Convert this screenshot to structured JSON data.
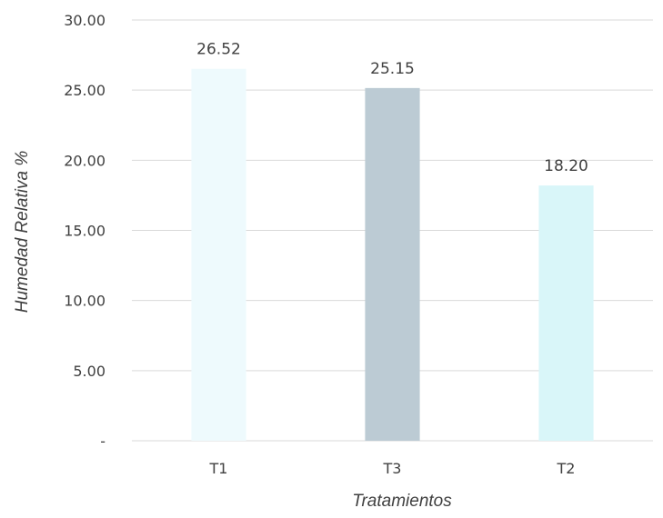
{
  "chart_data": {
    "type": "bar",
    "title": "",
    "xlabel": "Tratamientos",
    "ylabel": "Humedad Relativa %",
    "categories": [
      "T1",
      "T3",
      "T2"
    ],
    "values": [
      26.52,
      25.15,
      18.2
    ],
    "data_labels": [
      "26.52",
      "25.15",
      "18.20"
    ],
    "ylim": [
      0,
      30
    ],
    "yticks": [
      0,
      5,
      10,
      15,
      20,
      25,
      30
    ],
    "ytick_labels": [
      "-",
      "5.00",
      "10.00",
      "15.00",
      "20.00",
      "25.00",
      "30.00"
    ],
    "grid": true,
    "legend": "none",
    "bar_colors": [
      "#eefafd",
      "#bccbd4",
      "#d9f6f9"
    ],
    "gridline_color": "#d9d9d9"
  }
}
